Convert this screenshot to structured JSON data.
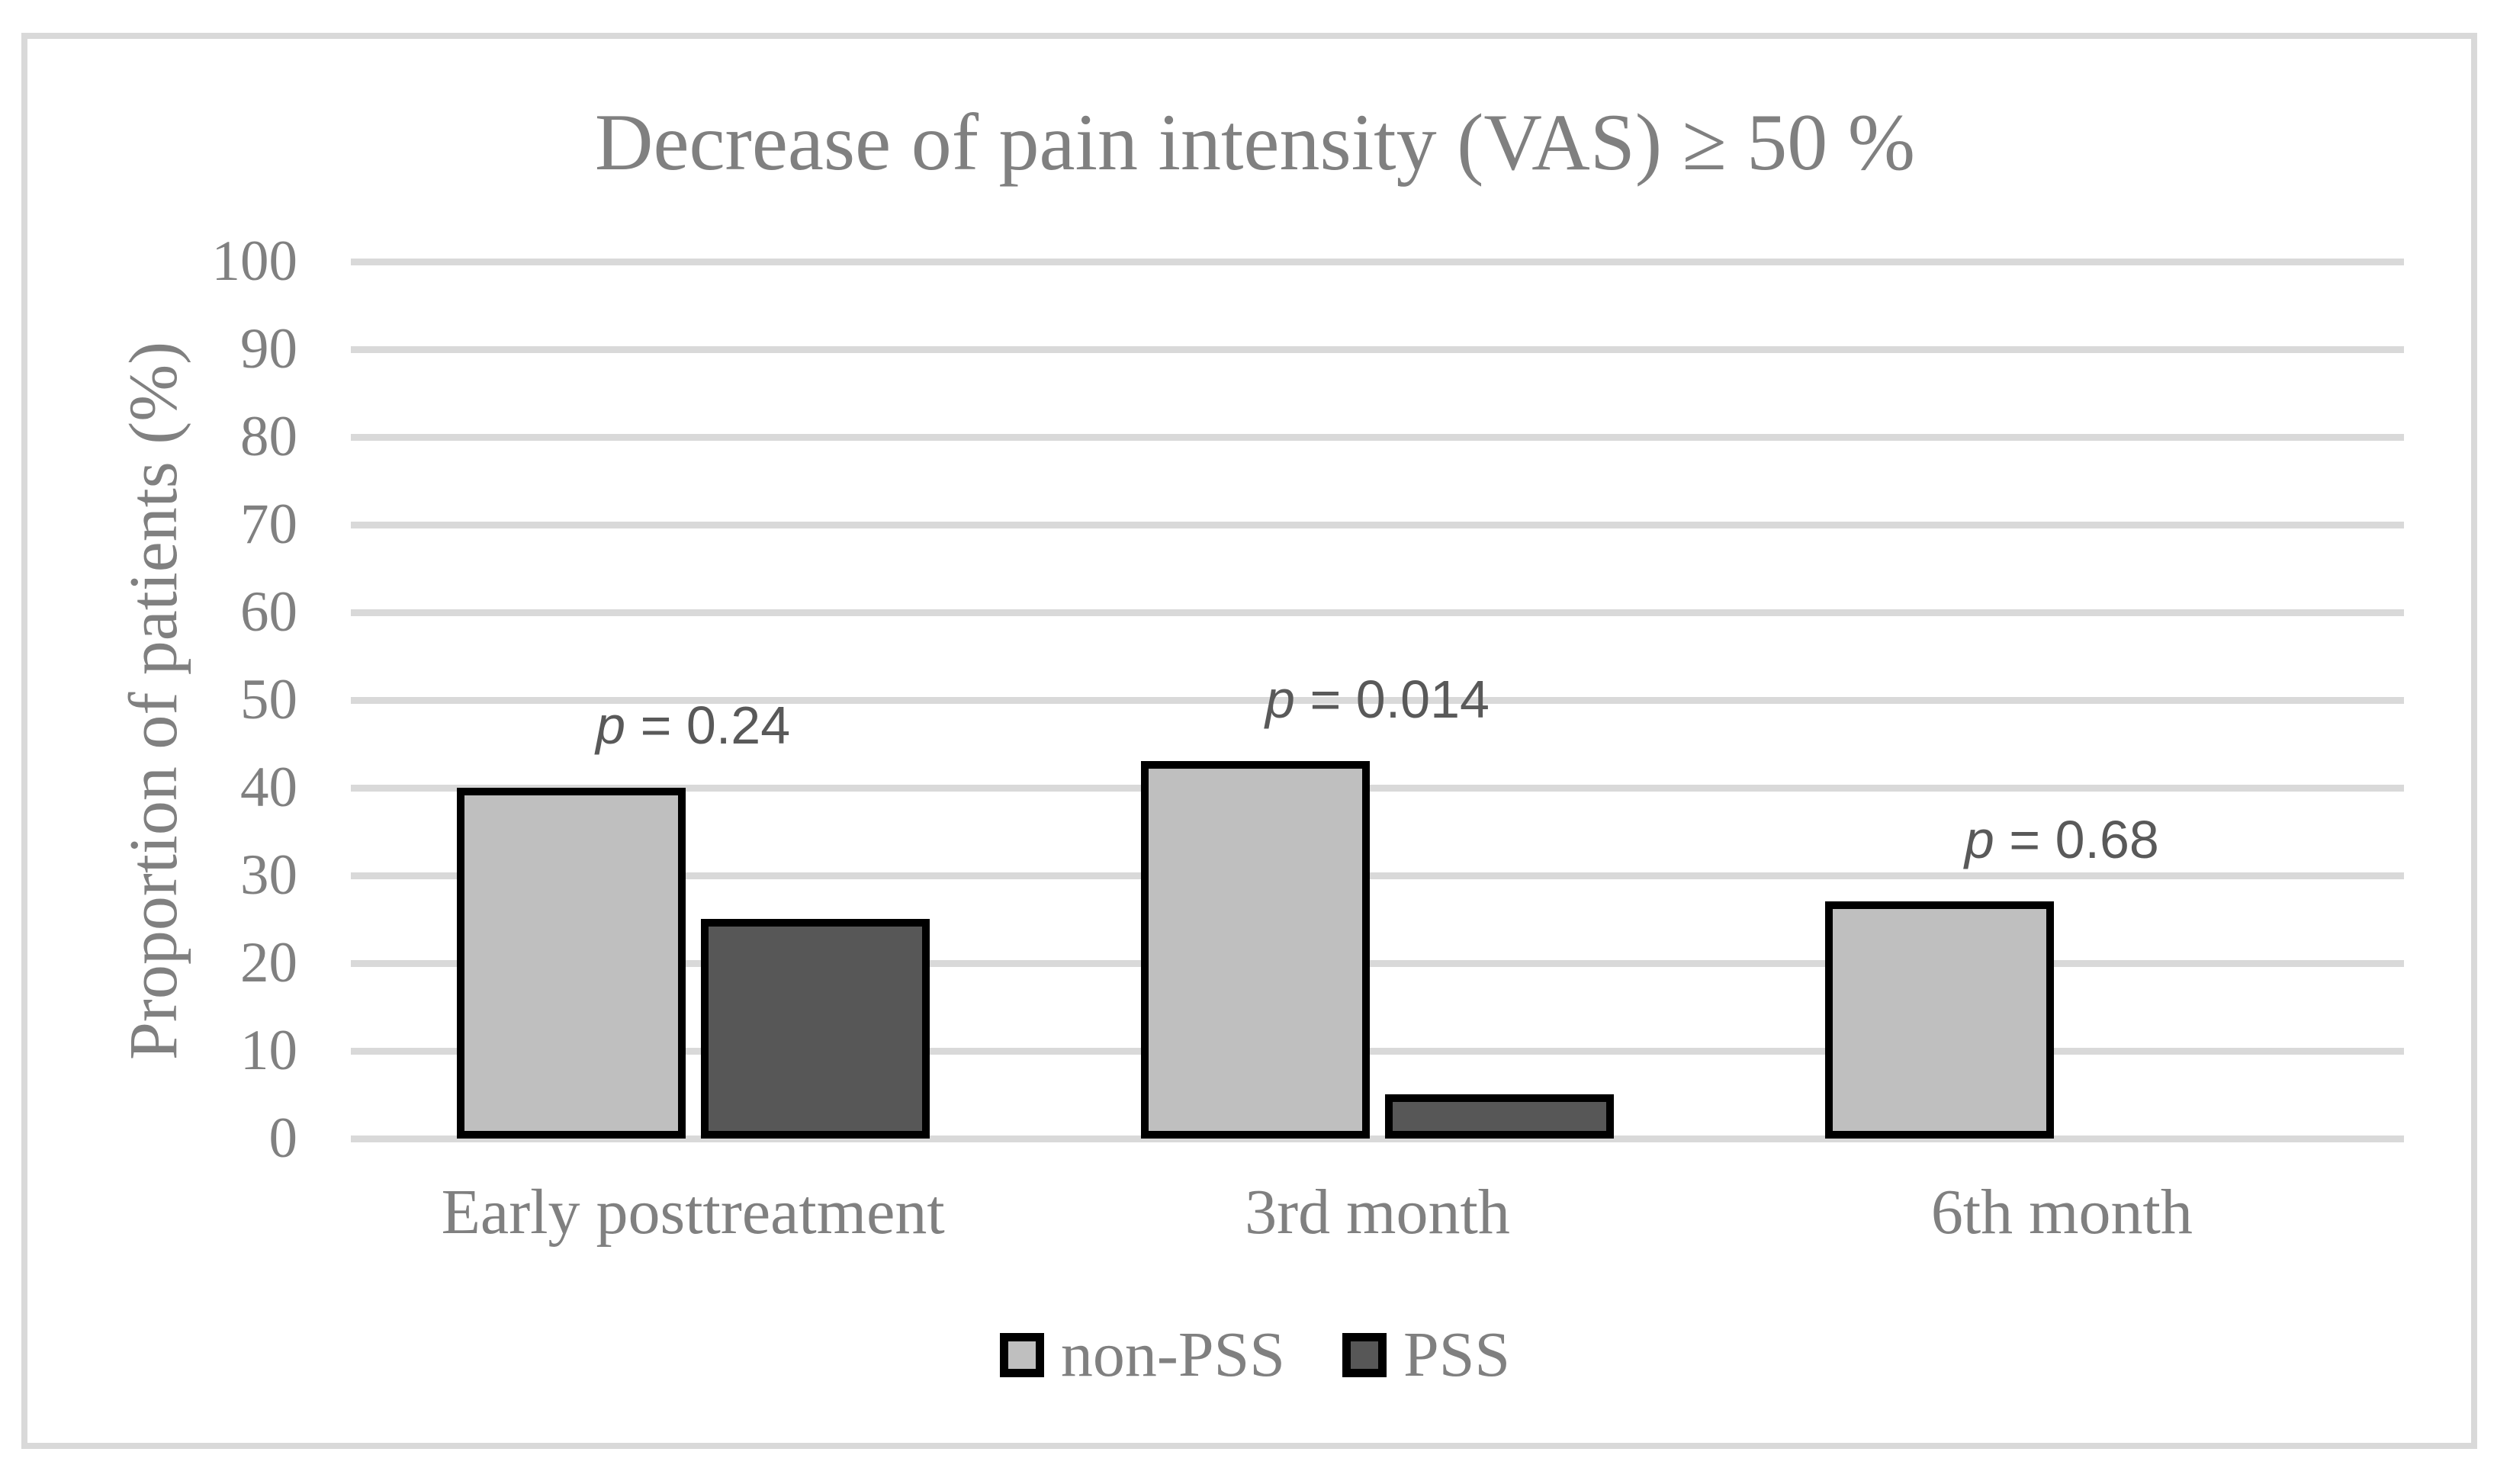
{
  "chart_data": {
    "type": "bar",
    "title": "Decrease of pain intensity (VAS) ≥ 50 %",
    "ylabel": "Proportion of patients (%)",
    "xlabel": "",
    "categories": [
      "Early posttreatment",
      "3rd month",
      "6th month"
    ],
    "series": [
      {
        "name": "non-PSS",
        "color": "#bfbfbf",
        "values": [
          40,
          43,
          27
        ]
      },
      {
        "name": "PSS",
        "color": "#575757",
        "values": [
          25,
          5,
          0
        ]
      }
    ],
    "annotations": [
      {
        "symbol": "p",
        "value": "0.24",
        "category": "Early posttreatment"
      },
      {
        "symbol": "p",
        "value": "0.014",
        "category": "3rd month"
      },
      {
        "symbol": "p",
        "value": "0.68",
        "category": "6th month"
      }
    ],
    "ylim": [
      0,
      100
    ],
    "yticks": [
      0,
      10,
      20,
      30,
      40,
      50,
      60,
      70,
      80,
      90,
      100
    ],
    "grid": true,
    "legend_position": "bottom",
    "colors": {
      "axis_text": "#808080",
      "annotation_text": "#595959",
      "gridline": "#d9d9d9",
      "bar_border": "#000000",
      "frame_border": "#d9d9d9",
      "background": "#ffffff"
    }
  }
}
